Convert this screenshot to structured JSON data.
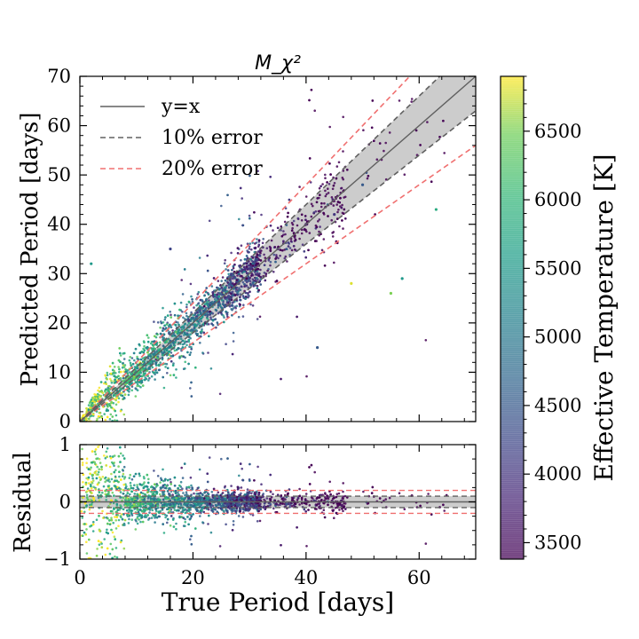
{
  "chart_data": [
    {
      "type": "scatter",
      "panel": "main",
      "title": "M_χ²",
      "xlabel": "",
      "ylabel": "Predicted Period [days]",
      "xlim": [
        0,
        70
      ],
      "ylim": [
        0,
        70
      ],
      "xticks": [
        0,
        20,
        40,
        60
      ],
      "yticks": [
        0,
        10,
        20,
        30,
        40,
        50,
        60,
        70
      ],
      "ytick_labels": [
        "0",
        "10",
        "20",
        "30",
        "40",
        "50",
        "60",
        "70"
      ],
      "grid": false,
      "legend_position": "top-left",
      "lines": [
        {
          "name": "y=x",
          "slope": 1.0,
          "color": "#606060",
          "style": "solid"
        },
        {
          "name": "10% error",
          "slopes": [
            0.9,
            1.1
          ],
          "color": "#606060",
          "style": "dashed",
          "band_fill": "#cccccc"
        },
        {
          "name": "20% error",
          "slopes": [
            0.8,
            1.2
          ],
          "color": "#f07070",
          "style": "dashed"
        }
      ],
      "legend": [
        "y=x",
        "10% error",
        "20% error"
      ],
      "scatter_description_points": [
        {
          "x": 3,
          "y": 3,
          "teff": 6200
        },
        {
          "x": 5,
          "y": 6,
          "teff": 6000
        },
        {
          "x": 8,
          "y": 8,
          "teff": 5800
        },
        {
          "x": 10,
          "y": 11,
          "teff": 5600
        },
        {
          "x": 12,
          "y": 12,
          "teff": 5400
        },
        {
          "x": 15,
          "y": 15,
          "teff": 5200
        },
        {
          "x": 18,
          "y": 18,
          "teff": 5000
        },
        {
          "x": 20,
          "y": 21,
          "teff": 4800
        },
        {
          "x": 22,
          "y": 22,
          "teff": 4600
        },
        {
          "x": 25,
          "y": 25,
          "teff": 4400
        },
        {
          "x": 28,
          "y": 28,
          "teff": 4200
        },
        {
          "x": 30,
          "y": 31,
          "teff": 4000
        },
        {
          "x": 35,
          "y": 35,
          "teff": 3900
        },
        {
          "x": 40,
          "y": 40,
          "teff": 3800
        },
        {
          "x": 45,
          "y": 42,
          "teff": 4000
        },
        {
          "x": 50,
          "y": 48,
          "teff": 4500
        },
        {
          "x": 55,
          "y": 26,
          "teff": 6500
        },
        {
          "x": 63,
          "y": 43,
          "teff": 5800
        },
        {
          "x": 2,
          "y": 32,
          "teff": 5500
        },
        {
          "x": 16,
          "y": 35,
          "teff": 4200
        },
        {
          "x": 42,
          "y": 15,
          "teff": 4500
        },
        {
          "x": 48,
          "y": 28,
          "teff": 6800
        },
        {
          "x": 57,
          "y": 29,
          "teff": 5500
        }
      ]
    },
    {
      "type": "scatter",
      "panel": "residual",
      "xlabel": "True Period [days]",
      "ylabel": "Residual",
      "xlim": [
        0,
        70
      ],
      "ylim": [
        -1,
        1
      ],
      "xticks": [
        0,
        20,
        40,
        60
      ],
      "xtick_labels": [
        "0",
        "20",
        "40",
        "60"
      ],
      "yticks": [
        -1,
        0,
        1
      ],
      "ytick_labels": [
        "−1",
        "0",
        "1"
      ],
      "lines": [
        {
          "name": "zero",
          "y": 0,
          "color": "#606060",
          "style": "solid"
        },
        {
          "name": "10% error",
          "y": [
            -0.1,
            0.1
          ],
          "color": "#606060",
          "style": "dashed",
          "band_fill": "#cccccc"
        },
        {
          "name": "20% error",
          "y": [
            -0.2,
            0.2
          ],
          "color": "#f07070",
          "style": "dashed"
        }
      ]
    }
  ],
  "colorbar": {
    "label": "Effective Temperature [K]",
    "range": [
      3380,
      6900
    ],
    "ticks": [
      3500,
      4000,
      4500,
      5000,
      5500,
      6000,
      6500
    ],
    "tick_labels": [
      "3500",
      "4000",
      "4500",
      "5000",
      "5500",
      "6000",
      "6500"
    ],
    "colormap": "viridis"
  },
  "legend_labels": {
    "line": "y=x",
    "err10": "10% error",
    "err20": "20% error"
  }
}
